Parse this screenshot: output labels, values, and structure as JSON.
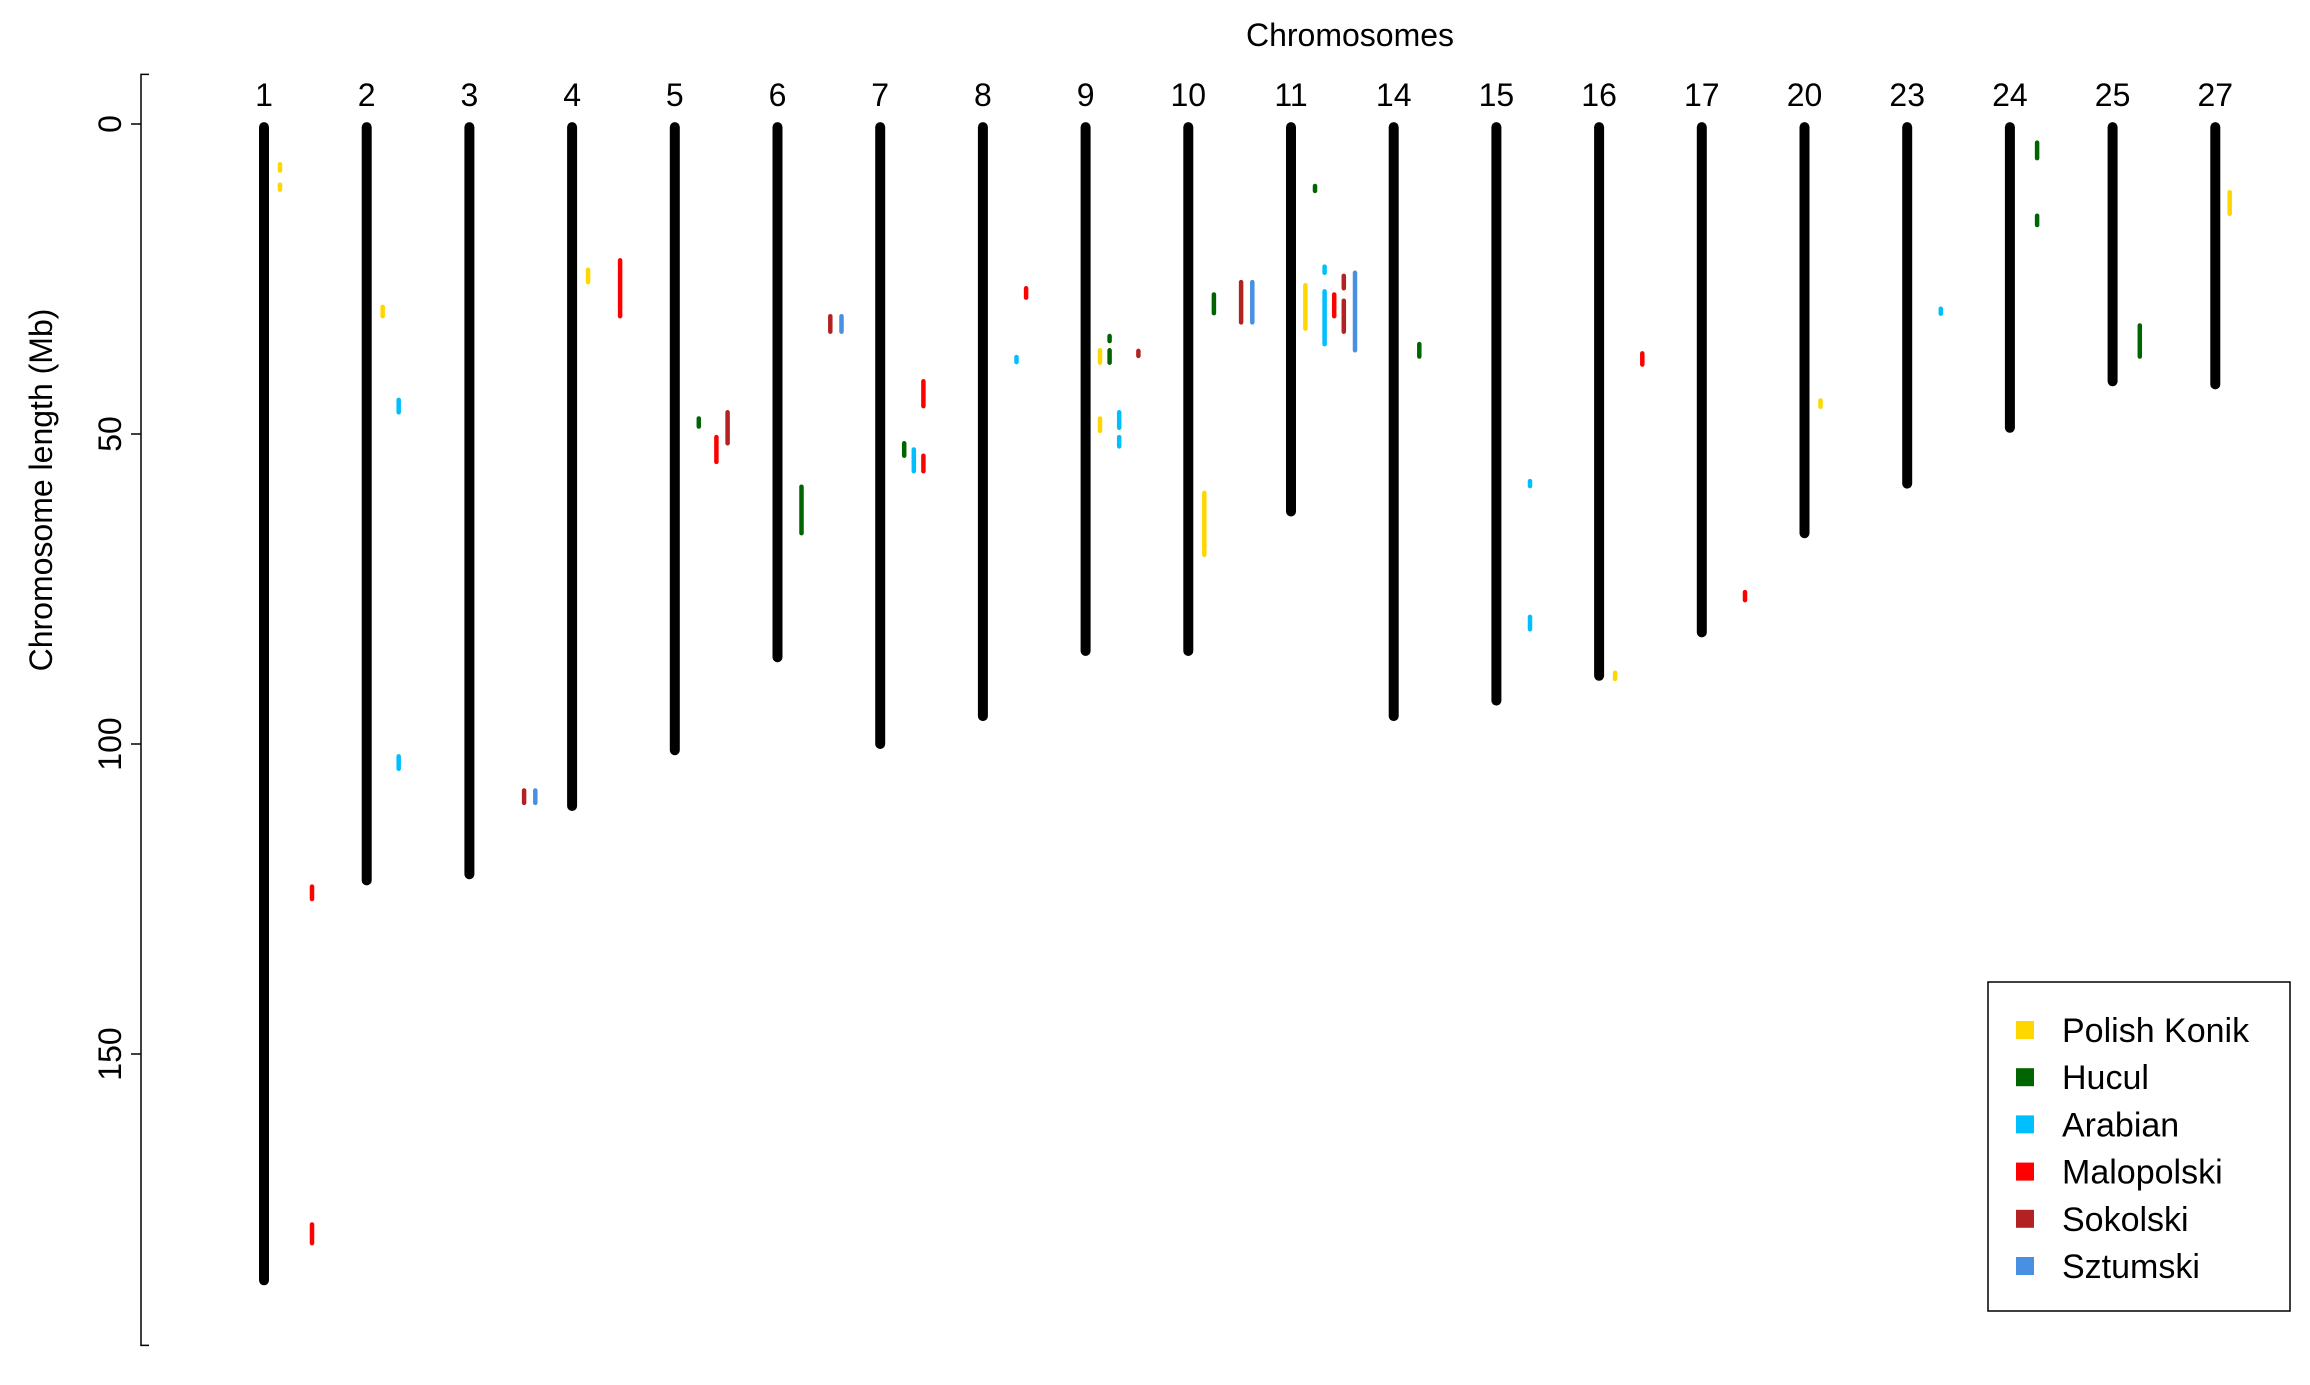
{
  "chart_data": {
    "type": "chromosome-map",
    "title": "Chromosomes",
    "ylabel": "Chromosome length (Mb)",
    "yticks": [
      0,
      50,
      100,
      150
    ],
    "ylim": [
      -8,
      197
    ],
    "yreversed": true,
    "legend_position": "bottom-right",
    "breeds": [
      {
        "name": "Polish Konik",
        "color": "#FFD700"
      },
      {
        "name": "Hucul",
        "color": "#006400"
      },
      {
        "name": "Arabian",
        "color": "#00BFFF"
      },
      {
        "name": "Malopolski",
        "color": "#FF0000"
      },
      {
        "name": "Sokolski",
        "color": "#B22222"
      },
      {
        "name": "Sztumski",
        "color": "#4A90E2"
      }
    ],
    "chromosomes": [
      {
        "label": "1",
        "length": 186.5,
        "segments": [
          {
            "breed": 0,
            "start": 6.5,
            "end": 7.5,
            "offset": 1
          },
          {
            "breed": 0,
            "start": 9.8,
            "end": 10.6,
            "offset": 1
          },
          {
            "breed": 3,
            "start": 123,
            "end": 125,
            "offset": 3
          },
          {
            "breed": 3,
            "start": 177.5,
            "end": 180.5,
            "offset": 3
          }
        ]
      },
      {
        "label": "2",
        "length": 122,
        "segments": [
          {
            "breed": 0,
            "start": 29.5,
            "end": 31,
            "offset": 1
          },
          {
            "breed": 2,
            "start": 44.5,
            "end": 46.5,
            "offset": 2
          },
          {
            "breed": 2,
            "start": 102,
            "end": 104,
            "offset": 2
          }
        ]
      },
      {
        "label": "3",
        "length": 121,
        "segments": []
      },
      {
        "label": "4",
        "length": 110,
        "segments": [
          {
            "breed": 0,
            "start": 23.5,
            "end": 25.5,
            "offset": 1
          },
          {
            "breed": 3,
            "start": 22,
            "end": 31,
            "offset": 3
          },
          {
            "breed": 4,
            "start": 107.5,
            "end": 109.5,
            "offset": -3
          },
          {
            "breed": 5,
            "start": 107.5,
            "end": 109.5,
            "offset": -2.3
          }
        ]
      },
      {
        "label": "5",
        "length": 101,
        "segments": [
          {
            "breed": 1,
            "start": 47.5,
            "end": 48.8,
            "offset": 1.5
          },
          {
            "breed": 3,
            "start": 50.5,
            "end": 54.5,
            "offset": 2.6
          },
          {
            "breed": 4,
            "start": 46.5,
            "end": 51.5,
            "offset": 3.3
          }
        ]
      },
      {
        "label": "6",
        "length": 86,
        "segments": [
          {
            "breed": 1,
            "start": 58.5,
            "end": 66,
            "offset": 1.5
          },
          {
            "breed": 4,
            "start": 31,
            "end": 33.5,
            "offset": 3.3
          },
          {
            "breed": 5,
            "start": 31,
            "end": 33.5,
            "offset": 4
          }
        ]
      },
      {
        "label": "7",
        "length": 100,
        "segments": [
          {
            "breed": 1,
            "start": 51.5,
            "end": 53.5,
            "offset": 1.5
          },
          {
            "breed": 2,
            "start": 52.5,
            "end": 56,
            "offset": 2.1
          },
          {
            "breed": 3,
            "start": 41.5,
            "end": 45.5,
            "offset": 2.7
          },
          {
            "breed": 3,
            "start": 53.5,
            "end": 56,
            "offset": 2.7
          }
        ]
      },
      {
        "label": "8",
        "length": 95.5,
        "segments": [
          {
            "breed": 3,
            "start": 26.5,
            "end": 28,
            "offset": 2.7
          },
          {
            "breed": 2,
            "start": 37.6,
            "end": 38.4,
            "offset": 2.1
          }
        ]
      },
      {
        "label": "9",
        "length": 85,
        "segments": [
          {
            "breed": 0,
            "start": 36.5,
            "end": 38.5,
            "offset": 0.9
          },
          {
            "breed": 1,
            "start": 34.2,
            "end": 35,
            "offset": 1.5
          },
          {
            "breed": 1,
            "start": 36.5,
            "end": 38.5,
            "offset": 1.5
          },
          {
            "breed": 4,
            "start": 36.6,
            "end": 37.4,
            "offset": 3.3
          },
          {
            "breed": 0,
            "start": 47.5,
            "end": 49.5,
            "offset": 0.9
          },
          {
            "breed": 2,
            "start": 46.5,
            "end": 49,
            "offset": 2.1
          },
          {
            "breed": 2,
            "start": 50.5,
            "end": 52,
            "offset": 2.1
          }
        ]
      },
      {
        "label": "10",
        "length": 85,
        "segments": [
          {
            "breed": 0,
            "start": 59.5,
            "end": 69.5,
            "offset": 1
          },
          {
            "breed": 1,
            "start": 27.5,
            "end": 30.5,
            "offset": 1.6
          },
          {
            "breed": 4,
            "start": 25.5,
            "end": 32,
            "offset": 3.3
          },
          {
            "breed": 5,
            "start": 25.5,
            "end": 32,
            "offset": 4
          }
        ]
      },
      {
        "label": "11",
        "length": 62.5,
        "segments": [
          {
            "breed": 0,
            "start": 26,
            "end": 33,
            "offset": 0.9
          },
          {
            "breed": 1,
            "start": 10,
            "end": 10.8,
            "offset": 1.5
          },
          {
            "breed": 2,
            "start": 23,
            "end": 24,
            "offset": 2.1
          },
          {
            "breed": 2,
            "start": 27,
            "end": 35.5,
            "offset": 2.1
          },
          {
            "breed": 3,
            "start": 27.5,
            "end": 31,
            "offset": 2.7
          },
          {
            "breed": 4,
            "start": 24.5,
            "end": 26.5,
            "offset": 3.3
          },
          {
            "breed": 4,
            "start": 28.5,
            "end": 33.5,
            "offset": 3.3
          },
          {
            "breed": 5,
            "start": 24,
            "end": 36.5,
            "offset": 4
          }
        ]
      },
      {
        "label": "14",
        "length": 95.5,
        "segments": [
          {
            "breed": 1,
            "start": 35.5,
            "end": 37.5,
            "offset": 1.6
          }
        ]
      },
      {
        "label": "15",
        "length": 93,
        "segments": [
          {
            "breed": 2,
            "start": 57.6,
            "end": 58.4,
            "offset": 2.1
          },
          {
            "breed": 2,
            "start": 79.5,
            "end": 81.5,
            "offset": 2.1
          }
        ]
      },
      {
        "label": "16",
        "length": 89,
        "segments": [
          {
            "breed": 0,
            "start": 88.5,
            "end": 89.5,
            "offset": 1
          },
          {
            "breed": 3,
            "start": 37,
            "end": 38.8,
            "offset": 2.7
          }
        ]
      },
      {
        "label": "17",
        "length": 82,
        "segments": [
          {
            "breed": 3,
            "start": 75.5,
            "end": 76.8,
            "offset": 2.7
          }
        ]
      },
      {
        "label": "20",
        "length": 66,
        "segments": [
          {
            "breed": 0,
            "start": 44.6,
            "end": 45.6,
            "offset": 1
          }
        ]
      },
      {
        "label": "23",
        "length": 58,
        "segments": [
          {
            "breed": 2,
            "start": 29.8,
            "end": 30.6,
            "offset": 2.1
          }
        ]
      },
      {
        "label": "24",
        "length": 49,
        "segments": [
          {
            "breed": 1,
            "start": 3,
            "end": 5.5,
            "offset": 1.7
          },
          {
            "breed": 1,
            "start": 14.8,
            "end": 16.3,
            "offset": 1.7
          }
        ]
      },
      {
        "label": "25",
        "length": 41.5,
        "segments": [
          {
            "breed": 1,
            "start": 32.5,
            "end": 37.5,
            "offset": 1.7
          }
        ]
      },
      {
        "label": "27",
        "length": 42,
        "segments": [
          {
            "breed": 0,
            "start": 11,
            "end": 14.5,
            "offset": 0.9
          }
        ]
      }
    ]
  }
}
